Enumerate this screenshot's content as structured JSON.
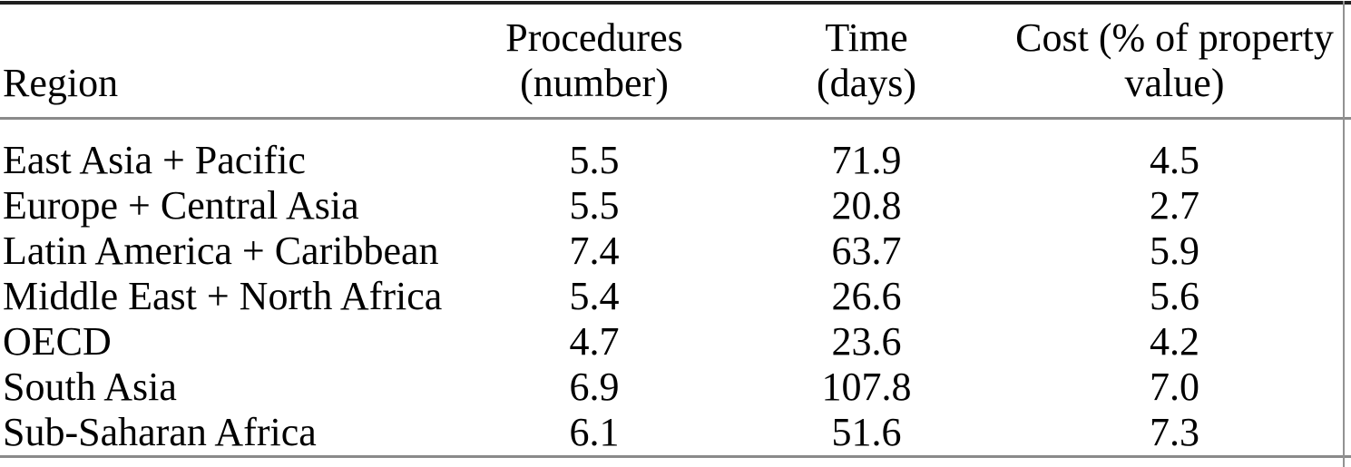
{
  "colors": {
    "text": "#000000",
    "top_rule": "#1f1f1f",
    "mid_rule": "#8a8a8a",
    "bottom_rule": "#8a8a8a",
    "right_edge": "#929292"
  },
  "table": {
    "header": {
      "region": "Region",
      "procedures_line1": "Procedures",
      "procedures_line2": "(number)",
      "time_line1": "Time",
      "time_line2": "(days)",
      "cost_line1": "Cost (% of property",
      "cost_line2": "value)"
    },
    "rows": [
      {
        "region": "East Asia + Pacific",
        "procedures": "5.5",
        "time": "71.9",
        "cost": "4.5"
      },
      {
        "region": "Europe + Central Asia",
        "procedures": "5.5",
        "time": "20.8",
        "cost": "2.7"
      },
      {
        "region": "Latin America + Caribbean",
        "procedures": "7.4",
        "time": "63.7",
        "cost": "5.9"
      },
      {
        "region": "Middle East + North Africa",
        "procedures": "5.4",
        "time": "26.6",
        "cost": "5.6"
      },
      {
        "region": "OECD",
        "procedures": "4.7",
        "time": "23.6",
        "cost": "4.2"
      },
      {
        "region": "South Asia",
        "procedures": "6.9",
        "time": "107.8",
        "cost": "7.0"
      },
      {
        "region": "Sub-Saharan Africa",
        "procedures": "6.1",
        "time": "51.6",
        "cost": "7.3"
      }
    ]
  },
  "chart_data": {
    "type": "table",
    "columns": [
      "Region",
      "Procedures (number)",
      "Time (days)",
      "Cost (% of property value)"
    ],
    "rows": [
      [
        "East Asia + Pacific",
        5.5,
        71.9,
        4.5
      ],
      [
        "Europe + Central Asia",
        5.5,
        20.8,
        2.7
      ],
      [
        "Latin America + Caribbean",
        7.4,
        63.7,
        5.9
      ],
      [
        "Middle East + North Africa",
        5.4,
        26.6,
        5.6
      ],
      [
        "OECD",
        4.7,
        23.6,
        4.2
      ],
      [
        "South Asia",
        6.9,
        107.8,
        7.0
      ],
      [
        "Sub-Saharan Africa",
        6.1,
        51.6,
        7.3
      ]
    ]
  }
}
